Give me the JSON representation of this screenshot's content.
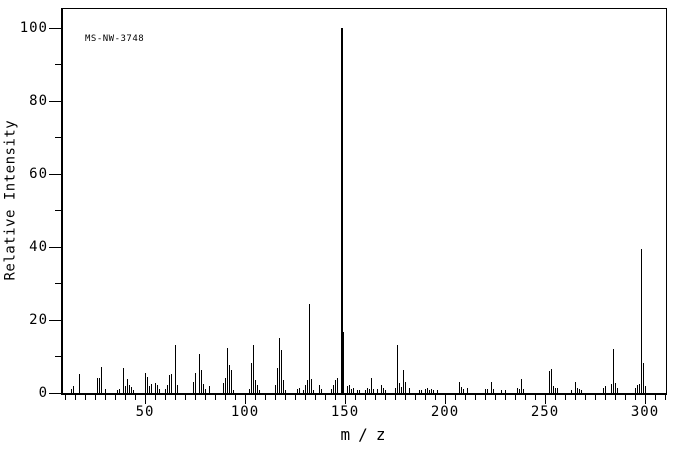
{
  "figure": {
    "background_color": "#ffffff",
    "foreground_color": "#000000"
  },
  "chart_data": {
    "type": "bar",
    "chart_kind": "mass-spectrum",
    "title": "",
    "annotation": "MS-NW-3748",
    "xlabel": "m/z",
    "ylabel": "Relative Intensity",
    "xlim": [
      8.5,
      310.5
    ],
    "ylim": [
      0,
      105.75
    ],
    "grid": false,
    "legend": false,
    "x_major_ticks": [
      50,
      100,
      150,
      200,
      250,
      300
    ],
    "x_minor_tick_start": 10,
    "x_minor_tick_end": 310,
    "x_minor_tick_step": 5,
    "y_major_ticks": [
      0,
      20,
      40,
      60,
      80,
      100
    ],
    "y_minor_ticks": [
      10,
      30,
      50,
      70,
      90
    ],
    "peaks": [
      [
        13,
        1.2
      ],
      [
        14,
        1.8
      ],
      [
        17,
        5.3
      ],
      [
        26,
        4
      ],
      [
        27,
        4
      ],
      [
        28,
        7.2
      ],
      [
        30,
        1
      ],
      [
        36,
        0.9
      ],
      [
        37,
        1.2
      ],
      [
        39,
        6.9
      ],
      [
        40,
        1.8
      ],
      [
        41,
        3.8
      ],
      [
        42,
        2.3
      ],
      [
        43,
        1.7
      ],
      [
        44,
        0.8
      ],
      [
        50,
        5.5
      ],
      [
        51,
        4.4
      ],
      [
        52,
        1.8
      ],
      [
        53,
        2.6
      ],
      [
        55,
        2.8
      ],
      [
        56,
        2.2
      ],
      [
        57,
        1
      ],
      [
        60,
        1.2
      ],
      [
        61,
        2.2
      ],
      [
        62,
        4.8
      ],
      [
        63,
        5.2
      ],
      [
        65,
        13.2
      ],
      [
        66,
        2.1
      ],
      [
        74,
        3
      ],
      [
        75,
        5.6
      ],
      [
        77,
        10.7
      ],
      [
        78,
        6.4
      ],
      [
        79,
        2.4
      ],
      [
        80,
        1
      ],
      [
        82,
        1.8
      ],
      [
        89,
        2.8
      ],
      [
        90,
        4.1
      ],
      [
        91,
        12.4
      ],
      [
        92,
        7.7
      ],
      [
        93,
        6.3
      ],
      [
        94,
        0.9
      ],
      [
        102,
        1.1
      ],
      [
        103,
        8.3
      ],
      [
        104,
        13.2
      ],
      [
        105,
        3.6
      ],
      [
        106,
        2.2
      ],
      [
        107,
        0.7
      ],
      [
        115,
        2.3
      ],
      [
        116,
        6.9
      ],
      [
        117,
        15.2
      ],
      [
        118,
        11.8
      ],
      [
        119,
        3.6
      ],
      [
        120,
        0.9
      ],
      [
        126,
        1
      ],
      [
        127,
        1.4
      ],
      [
        129,
        0.9
      ],
      [
        130,
        2.3
      ],
      [
        131,
        3.6
      ],
      [
        132,
        24.5
      ],
      [
        133,
        3.8
      ],
      [
        134,
        0.7
      ],
      [
        137,
        2.3
      ],
      [
        138,
        1.1
      ],
      [
        143,
        1.1
      ],
      [
        144,
        2.3
      ],
      [
        145,
        3.5
      ],
      [
        146,
        4.1
      ],
      [
        148,
        100
      ],
      [
        149,
        16.6
      ],
      [
        151,
        1.8
      ],
      [
        152,
        2.3
      ],
      [
        153,
        1.1
      ],
      [
        154,
        1.4
      ],
      [
        156,
        0.7
      ],
      [
        157,
        0.9
      ],
      [
        160,
        0.9
      ],
      [
        161,
        1.3
      ],
      [
        162,
        1.1
      ],
      [
        163,
        4
      ],
      [
        164,
        1.1
      ],
      [
        166,
        1
      ],
      [
        168,
        2.2
      ],
      [
        169,
        1.3
      ],
      [
        170,
        0.9
      ],
      [
        175,
        1.5
      ],
      [
        176,
        13.2
      ],
      [
        177,
        2.7
      ],
      [
        178,
        1.7
      ],
      [
        179,
        6.3
      ],
      [
        180,
        3.1
      ],
      [
        182,
        1.4
      ],
      [
        187,
        0.9
      ],
      [
        188,
        0.8
      ],
      [
        190,
        1.2
      ],
      [
        191,
        1.4
      ],
      [
        192,
        0.9
      ],
      [
        193,
        1.2
      ],
      [
        194,
        0.9
      ],
      [
        196,
        0.8
      ],
      [
        207,
        3.1
      ],
      [
        208,
        1.6
      ],
      [
        209,
        1.1
      ],
      [
        211,
        1.4
      ],
      [
        220,
        1
      ],
      [
        221,
        1
      ],
      [
        223,
        3
      ],
      [
        224,
        1
      ],
      [
        228,
        0.7
      ],
      [
        230,
        0.8
      ],
      [
        236,
        1.4
      ],
      [
        237,
        1.1
      ],
      [
        238,
        3.8
      ],
      [
        239,
        1
      ],
      [
        252,
        5.9
      ],
      [
        253,
        6.5
      ],
      [
        254,
        2
      ],
      [
        255,
        1.5
      ],
      [
        256,
        1.4
      ],
      [
        263,
        0.9
      ],
      [
        265,
        3
      ],
      [
        266,
        1.5
      ],
      [
        267,
        1
      ],
      [
        268,
        0.8
      ],
      [
        279,
        1.4
      ],
      [
        280,
        2
      ],
      [
        283,
        2.4
      ],
      [
        284,
        12
      ],
      [
        285,
        2.7
      ],
      [
        286,
        1.4
      ],
      [
        295,
        1.4
      ],
      [
        296,
        2.2
      ],
      [
        297,
        2.5
      ],
      [
        298,
        39.5
      ],
      [
        299,
        8.2
      ],
      [
        300,
        2
      ]
    ]
  }
}
